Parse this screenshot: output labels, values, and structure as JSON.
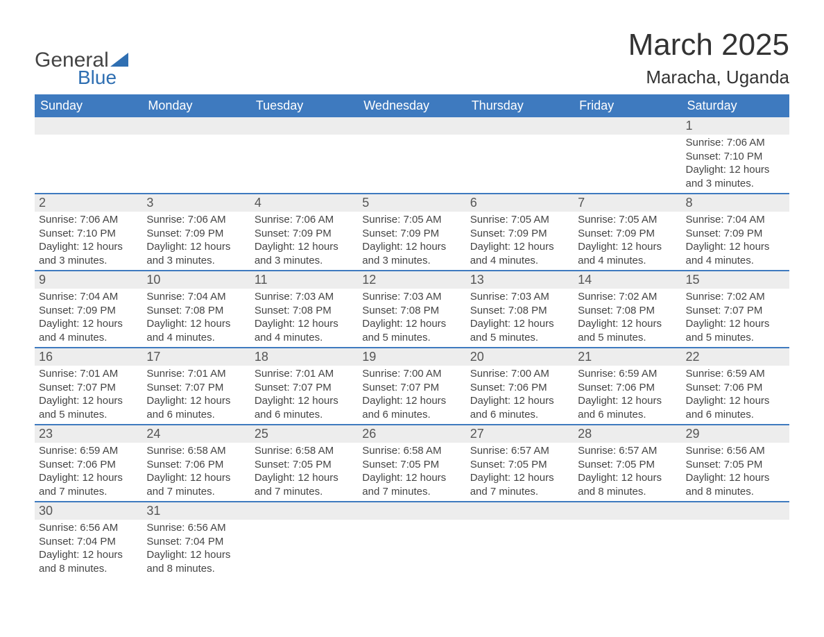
{
  "logo": {
    "line1": "General",
    "line2": "Blue",
    "accent_color": "#2f6fb2"
  },
  "title": {
    "month": "March 2025",
    "location": "Maracha, Uganda"
  },
  "colors": {
    "header_bg": "#3e7abf",
    "header_fg": "#ffffff",
    "daynum_bg": "#ededed",
    "row_border": "#3e7abf",
    "text": "#333333"
  },
  "day_names": [
    "Sunday",
    "Monday",
    "Tuesday",
    "Wednesday",
    "Thursday",
    "Friday",
    "Saturday"
  ],
  "weeks": [
    [
      null,
      null,
      null,
      null,
      null,
      null,
      {
        "n": "1",
        "sr": "7:06 AM",
        "ss": "7:10 PM",
        "dl": "12 hours and 3 minutes."
      }
    ],
    [
      {
        "n": "2",
        "sr": "7:06 AM",
        "ss": "7:10 PM",
        "dl": "12 hours and 3 minutes."
      },
      {
        "n": "3",
        "sr": "7:06 AM",
        "ss": "7:09 PM",
        "dl": "12 hours and 3 minutes."
      },
      {
        "n": "4",
        "sr": "7:06 AM",
        "ss": "7:09 PM",
        "dl": "12 hours and 3 minutes."
      },
      {
        "n": "5",
        "sr": "7:05 AM",
        "ss": "7:09 PM",
        "dl": "12 hours and 3 minutes."
      },
      {
        "n": "6",
        "sr": "7:05 AM",
        "ss": "7:09 PM",
        "dl": "12 hours and 4 minutes."
      },
      {
        "n": "7",
        "sr": "7:05 AM",
        "ss": "7:09 PM",
        "dl": "12 hours and 4 minutes."
      },
      {
        "n": "8",
        "sr": "7:04 AM",
        "ss": "7:09 PM",
        "dl": "12 hours and 4 minutes."
      }
    ],
    [
      {
        "n": "9",
        "sr": "7:04 AM",
        "ss": "7:09 PM",
        "dl": "12 hours and 4 minutes."
      },
      {
        "n": "10",
        "sr": "7:04 AM",
        "ss": "7:08 PM",
        "dl": "12 hours and 4 minutes."
      },
      {
        "n": "11",
        "sr": "7:03 AM",
        "ss": "7:08 PM",
        "dl": "12 hours and 4 minutes."
      },
      {
        "n": "12",
        "sr": "7:03 AM",
        "ss": "7:08 PM",
        "dl": "12 hours and 5 minutes."
      },
      {
        "n": "13",
        "sr": "7:03 AM",
        "ss": "7:08 PM",
        "dl": "12 hours and 5 minutes."
      },
      {
        "n": "14",
        "sr": "7:02 AM",
        "ss": "7:08 PM",
        "dl": "12 hours and 5 minutes."
      },
      {
        "n": "15",
        "sr": "7:02 AM",
        "ss": "7:07 PM",
        "dl": "12 hours and 5 minutes."
      }
    ],
    [
      {
        "n": "16",
        "sr": "7:01 AM",
        "ss": "7:07 PM",
        "dl": "12 hours and 5 minutes."
      },
      {
        "n": "17",
        "sr": "7:01 AM",
        "ss": "7:07 PM",
        "dl": "12 hours and 6 minutes."
      },
      {
        "n": "18",
        "sr": "7:01 AM",
        "ss": "7:07 PM",
        "dl": "12 hours and 6 minutes."
      },
      {
        "n": "19",
        "sr": "7:00 AM",
        "ss": "7:07 PM",
        "dl": "12 hours and 6 minutes."
      },
      {
        "n": "20",
        "sr": "7:00 AM",
        "ss": "7:06 PM",
        "dl": "12 hours and 6 minutes."
      },
      {
        "n": "21",
        "sr": "6:59 AM",
        "ss": "7:06 PM",
        "dl": "12 hours and 6 minutes."
      },
      {
        "n": "22",
        "sr": "6:59 AM",
        "ss": "7:06 PM",
        "dl": "12 hours and 6 minutes."
      }
    ],
    [
      {
        "n": "23",
        "sr": "6:59 AM",
        "ss": "7:06 PM",
        "dl": "12 hours and 7 minutes."
      },
      {
        "n": "24",
        "sr": "6:58 AM",
        "ss": "7:06 PM",
        "dl": "12 hours and 7 minutes."
      },
      {
        "n": "25",
        "sr": "6:58 AM",
        "ss": "7:05 PM",
        "dl": "12 hours and 7 minutes."
      },
      {
        "n": "26",
        "sr": "6:58 AM",
        "ss": "7:05 PM",
        "dl": "12 hours and 7 minutes."
      },
      {
        "n": "27",
        "sr": "6:57 AM",
        "ss": "7:05 PM",
        "dl": "12 hours and 7 minutes."
      },
      {
        "n": "28",
        "sr": "6:57 AM",
        "ss": "7:05 PM",
        "dl": "12 hours and 8 minutes."
      },
      {
        "n": "29",
        "sr": "6:56 AM",
        "ss": "7:05 PM",
        "dl": "12 hours and 8 minutes."
      }
    ],
    [
      {
        "n": "30",
        "sr": "6:56 AM",
        "ss": "7:04 PM",
        "dl": "12 hours and 8 minutes."
      },
      {
        "n": "31",
        "sr": "6:56 AM",
        "ss": "7:04 PM",
        "dl": "12 hours and 8 minutes."
      },
      null,
      null,
      null,
      null,
      null
    ]
  ],
  "labels": {
    "sunrise": "Sunrise: ",
    "sunset": "Sunset: ",
    "daylight": "Daylight: "
  }
}
